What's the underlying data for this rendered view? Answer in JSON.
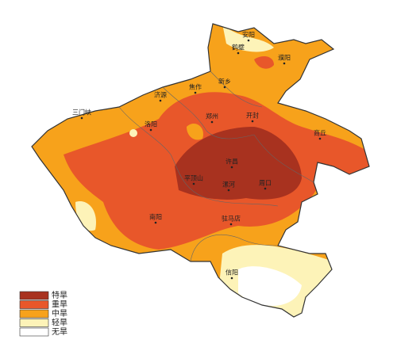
{
  "cities": [
    {
      "label": "安阳"
    },
    {
      "label": "鹤壁"
    },
    {
      "label": "濮阳"
    },
    {
      "label": "新乡"
    },
    {
      "label": "焦作"
    },
    {
      "label": "济源"
    },
    {
      "label": "三门峡"
    },
    {
      "label": "洛阳"
    },
    {
      "label": "郑州"
    },
    {
      "label": "开封"
    },
    {
      "label": "商丘"
    },
    {
      "label": "许昌"
    },
    {
      "label": "平顶山"
    },
    {
      "label": "漯河"
    },
    {
      "label": "周口"
    },
    {
      "label": "南阳"
    },
    {
      "label": "驻马店"
    },
    {
      "label": "信阳"
    }
  ],
  "legend": [
    {
      "label": "特旱",
      "color": "#a8321f"
    },
    {
      "label": "重旱",
      "color": "#e8572a"
    },
    {
      "label": "中旱",
      "color": "#f7a21b"
    },
    {
      "label": "轻旱",
      "color": "#fdf3b8"
    },
    {
      "label": "无旱",
      "color": "#ffffff"
    }
  ]
}
